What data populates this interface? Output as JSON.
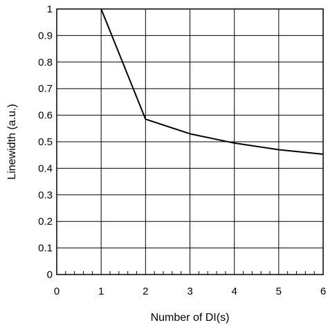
{
  "chart_data": {
    "type": "line",
    "title": "",
    "xlabel": "Number of DI(s)",
    "ylabel": "Linewidth (a.u.)",
    "xlim": [
      0,
      6
    ],
    "ylim": [
      0,
      1
    ],
    "grid": true,
    "x_ticks": [
      "0",
      "1",
      "2",
      "3",
      "4",
      "5",
      "6"
    ],
    "y_ticks": [
      "0",
      "0.1",
      "0.2",
      "0.3",
      "0.4",
      "0.5",
      "0.6",
      "0.7",
      "0.8",
      "0.9",
      "1"
    ],
    "series": [
      {
        "x": [
          1,
          2,
          3,
          4,
          5,
          6
        ],
        "values": [
          1.0,
          0.585,
          0.53,
          0.495,
          0.47,
          0.453
        ],
        "color": "#000000"
      }
    ]
  }
}
